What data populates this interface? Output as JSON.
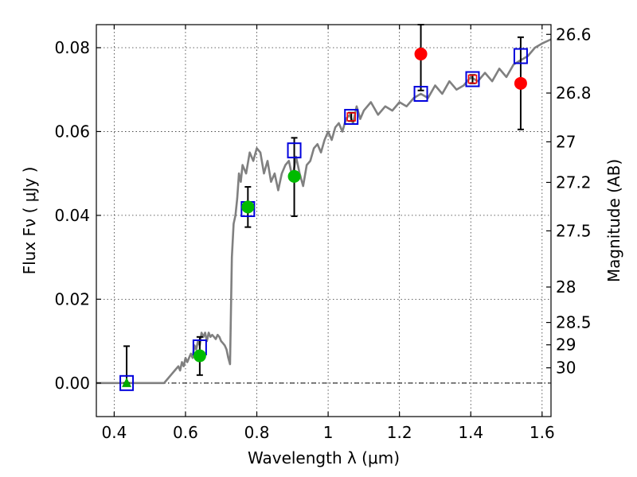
{
  "chart_data": {
    "type": "scatter",
    "xlabel": "Wavelength  λ (μm)",
    "ylabel": "Flux  Fν  ( μJy )",
    "ylabel_right": "Magnitude (AB)",
    "xlim": [
      0.35,
      1.625
    ],
    "ylim": [
      -0.008,
      0.0855
    ],
    "x_ticks": [
      {
        "value": 0.4,
        "label": "0.4"
      },
      {
        "value": 0.6,
        "label": "0.6"
      },
      {
        "value": 0.8,
        "label": "0.8"
      },
      {
        "value": 1.0,
        "label": "1"
      },
      {
        "value": 1.2,
        "label": "1.2"
      },
      {
        "value": 1.4,
        "label": "1.4"
      },
      {
        "value": 1.6,
        "label": "1.6"
      }
    ],
    "y_ticks": [
      {
        "value": 0.0,
        "label": "0.00"
      },
      {
        "value": 0.02,
        "label": "0.02"
      },
      {
        "value": 0.04,
        "label": "0.04"
      },
      {
        "value": 0.06,
        "label": "0.06"
      },
      {
        "value": 0.08,
        "label": "0.08"
      }
    ],
    "mag_ticks": [
      {
        "value": 26.6,
        "label": "26.6"
      },
      {
        "value": 26.8,
        "label": "26.8"
      },
      {
        "value": 27,
        "label": "27"
      },
      {
        "value": 27.2,
        "label": "27.2"
      },
      {
        "value": 27.5,
        "label": "27.5"
      },
      {
        "value": 28,
        "label": "28"
      },
      {
        "value": 28.5,
        "label": "28.5"
      },
      {
        "value": 29,
        "label": "29"
      },
      {
        "value": 30,
        "label": "30"
      }
    ],
    "grid": true,
    "zero_line": 0.0,
    "spectrum": {
      "color": "#808080",
      "x": [
        0.35,
        0.54,
        0.55,
        0.56,
        0.57,
        0.58,
        0.585,
        0.59,
        0.595,
        0.6,
        0.605,
        0.61,
        0.615,
        0.62,
        0.625,
        0.63,
        0.635,
        0.64,
        0.645,
        0.65,
        0.655,
        0.66,
        0.665,
        0.67,
        0.675,
        0.68,
        0.685,
        0.69,
        0.695,
        0.7,
        0.705,
        0.71,
        0.715,
        0.72,
        0.725,
        0.73,
        0.735,
        0.74,
        0.745,
        0.75,
        0.755,
        0.76,
        0.77,
        0.78,
        0.79,
        0.8,
        0.81,
        0.82,
        0.83,
        0.84,
        0.85,
        0.86,
        0.87,
        0.88,
        0.89,
        0.9,
        0.91,
        0.92,
        0.93,
        0.94,
        0.95,
        0.96,
        0.97,
        0.98,
        0.99,
        1.0,
        1.01,
        1.02,
        1.03,
        1.04,
        1.05,
        1.06,
        1.07,
        1.08,
        1.09,
        1.1,
        1.12,
        1.14,
        1.16,
        1.18,
        1.2,
        1.22,
        1.24,
        1.26,
        1.28,
        1.3,
        1.32,
        1.34,
        1.36,
        1.38,
        1.4,
        1.42,
        1.44,
        1.46,
        1.48,
        1.5,
        1.52,
        1.54,
        1.56,
        1.58,
        1.6,
        1.625
      ],
      "y": [
        0.0,
        0.0,
        0.001,
        0.002,
        0.003,
        0.004,
        0.003,
        0.005,
        0.004,
        0.006,
        0.005,
        0.006,
        0.007,
        0.006,
        0.009,
        0.008,
        0.01,
        0.009,
        0.012,
        0.011,
        0.012,
        0.01,
        0.012,
        0.011,
        0.0115,
        0.011,
        0.0105,
        0.0115,
        0.011,
        0.01,
        0.0095,
        0.009,
        0.008,
        0.006,
        0.0045,
        0.03,
        0.038,
        0.04,
        0.044,
        0.05,
        0.048,
        0.052,
        0.05,
        0.055,
        0.053,
        0.056,
        0.055,
        0.05,
        0.053,
        0.048,
        0.05,
        0.046,
        0.05,
        0.052,
        0.053,
        0.049,
        0.054,
        0.05,
        0.047,
        0.052,
        0.053,
        0.056,
        0.057,
        0.055,
        0.058,
        0.06,
        0.058,
        0.061,
        0.062,
        0.06,
        0.063,
        0.064,
        0.062,
        0.066,
        0.063,
        0.065,
        0.067,
        0.064,
        0.066,
        0.065,
        0.067,
        0.066,
        0.068,
        0.069,
        0.068,
        0.071,
        0.069,
        0.072,
        0.07,
        0.071,
        0.073,
        0.072,
        0.074,
        0.072,
        0.075,
        0.073,
        0.076,
        0.077,
        0.078,
        0.08,
        0.081,
        0.082
      ]
    },
    "series": [
      {
        "marker": "square",
        "color": "#0000dd",
        "points": [
          {
            "x": 0.435,
            "y": 0.0
          },
          {
            "x": 0.64,
            "y": 0.0085
          },
          {
            "x": 0.775,
            "y": 0.0415
          },
          {
            "x": 0.905,
            "y": 0.0555
          },
          {
            "x": 1.065,
            "y": 0.0635
          },
          {
            "x": 1.26,
            "y": 0.069
          },
          {
            "x": 1.405,
            "y": 0.0725
          },
          {
            "x": 1.54,
            "y": 0.078
          }
        ]
      },
      {
        "marker": "triangle",
        "color": "#00aa00",
        "points": [
          {
            "x": 0.435,
            "y": 0.0,
            "yerr_low": 0.0,
            "yerr_high": 0.0088
          }
        ]
      },
      {
        "marker": "circle",
        "color": "#00bb00",
        "points": [
          {
            "x": 0.64,
            "y": 0.0065,
            "yerr_low": 0.0019,
            "yerr_high": 0.011
          },
          {
            "x": 0.775,
            "y": 0.042,
            "yerr_low": 0.0372,
            "yerr_high": 0.0468
          },
          {
            "x": 0.905,
            "y": 0.0493,
            "yerr_low": 0.0398,
            "yerr_high": 0.0585
          }
        ]
      },
      {
        "marker": "circle",
        "color": "#ff0000",
        "points": [
          {
            "x": 1.065,
            "y": 0.0635,
            "yerr_low": 0.0625,
            "yerr_high": 0.0645,
            "hollow": true
          },
          {
            "x": 1.26,
            "y": 0.0785,
            "yerr_low": 0.0698,
            "yerr_high": 0.0855
          },
          {
            "x": 1.405,
            "y": 0.0725,
            "yerr_low": 0.0715,
            "yerr_high": 0.0735,
            "hollow": true
          },
          {
            "x": 1.54,
            "y": 0.0715,
            "yerr_low": 0.0605,
            "yerr_high": 0.0825
          }
        ]
      }
    ]
  }
}
